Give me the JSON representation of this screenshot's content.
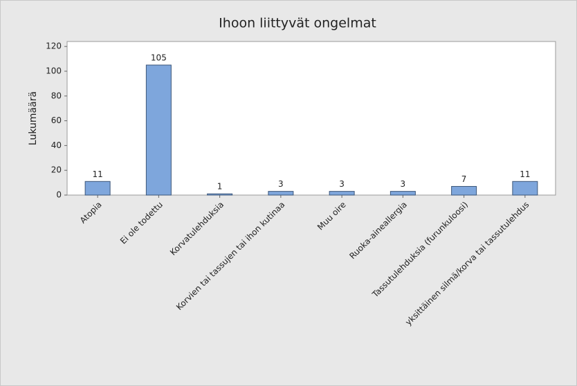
{
  "chart_data": {
    "type": "bar",
    "title": "Ihoon liittyvät ongelmat",
    "y_label": "Lukumäärä",
    "categories": [
      "Atopia",
      "Ei ole todettu",
      "Korvatulehduksia",
      "Korvien tai tassujen tai ihon kutinaa",
      "Muu oire",
      "Ruoka-aineallergia",
      "Tassutulehduksia (furunkuloosi)",
      "yksittäinen silmä/korva tai tassutulehdus"
    ],
    "values": [
      11,
      105,
      1,
      3,
      3,
      3,
      7,
      11
    ],
    "color": "#7ea6dc",
    "ylim": [
      0,
      124
    ],
    "yticks": [
      0,
      20,
      40,
      60,
      80,
      100,
      120
    ],
    "grid": false
  }
}
